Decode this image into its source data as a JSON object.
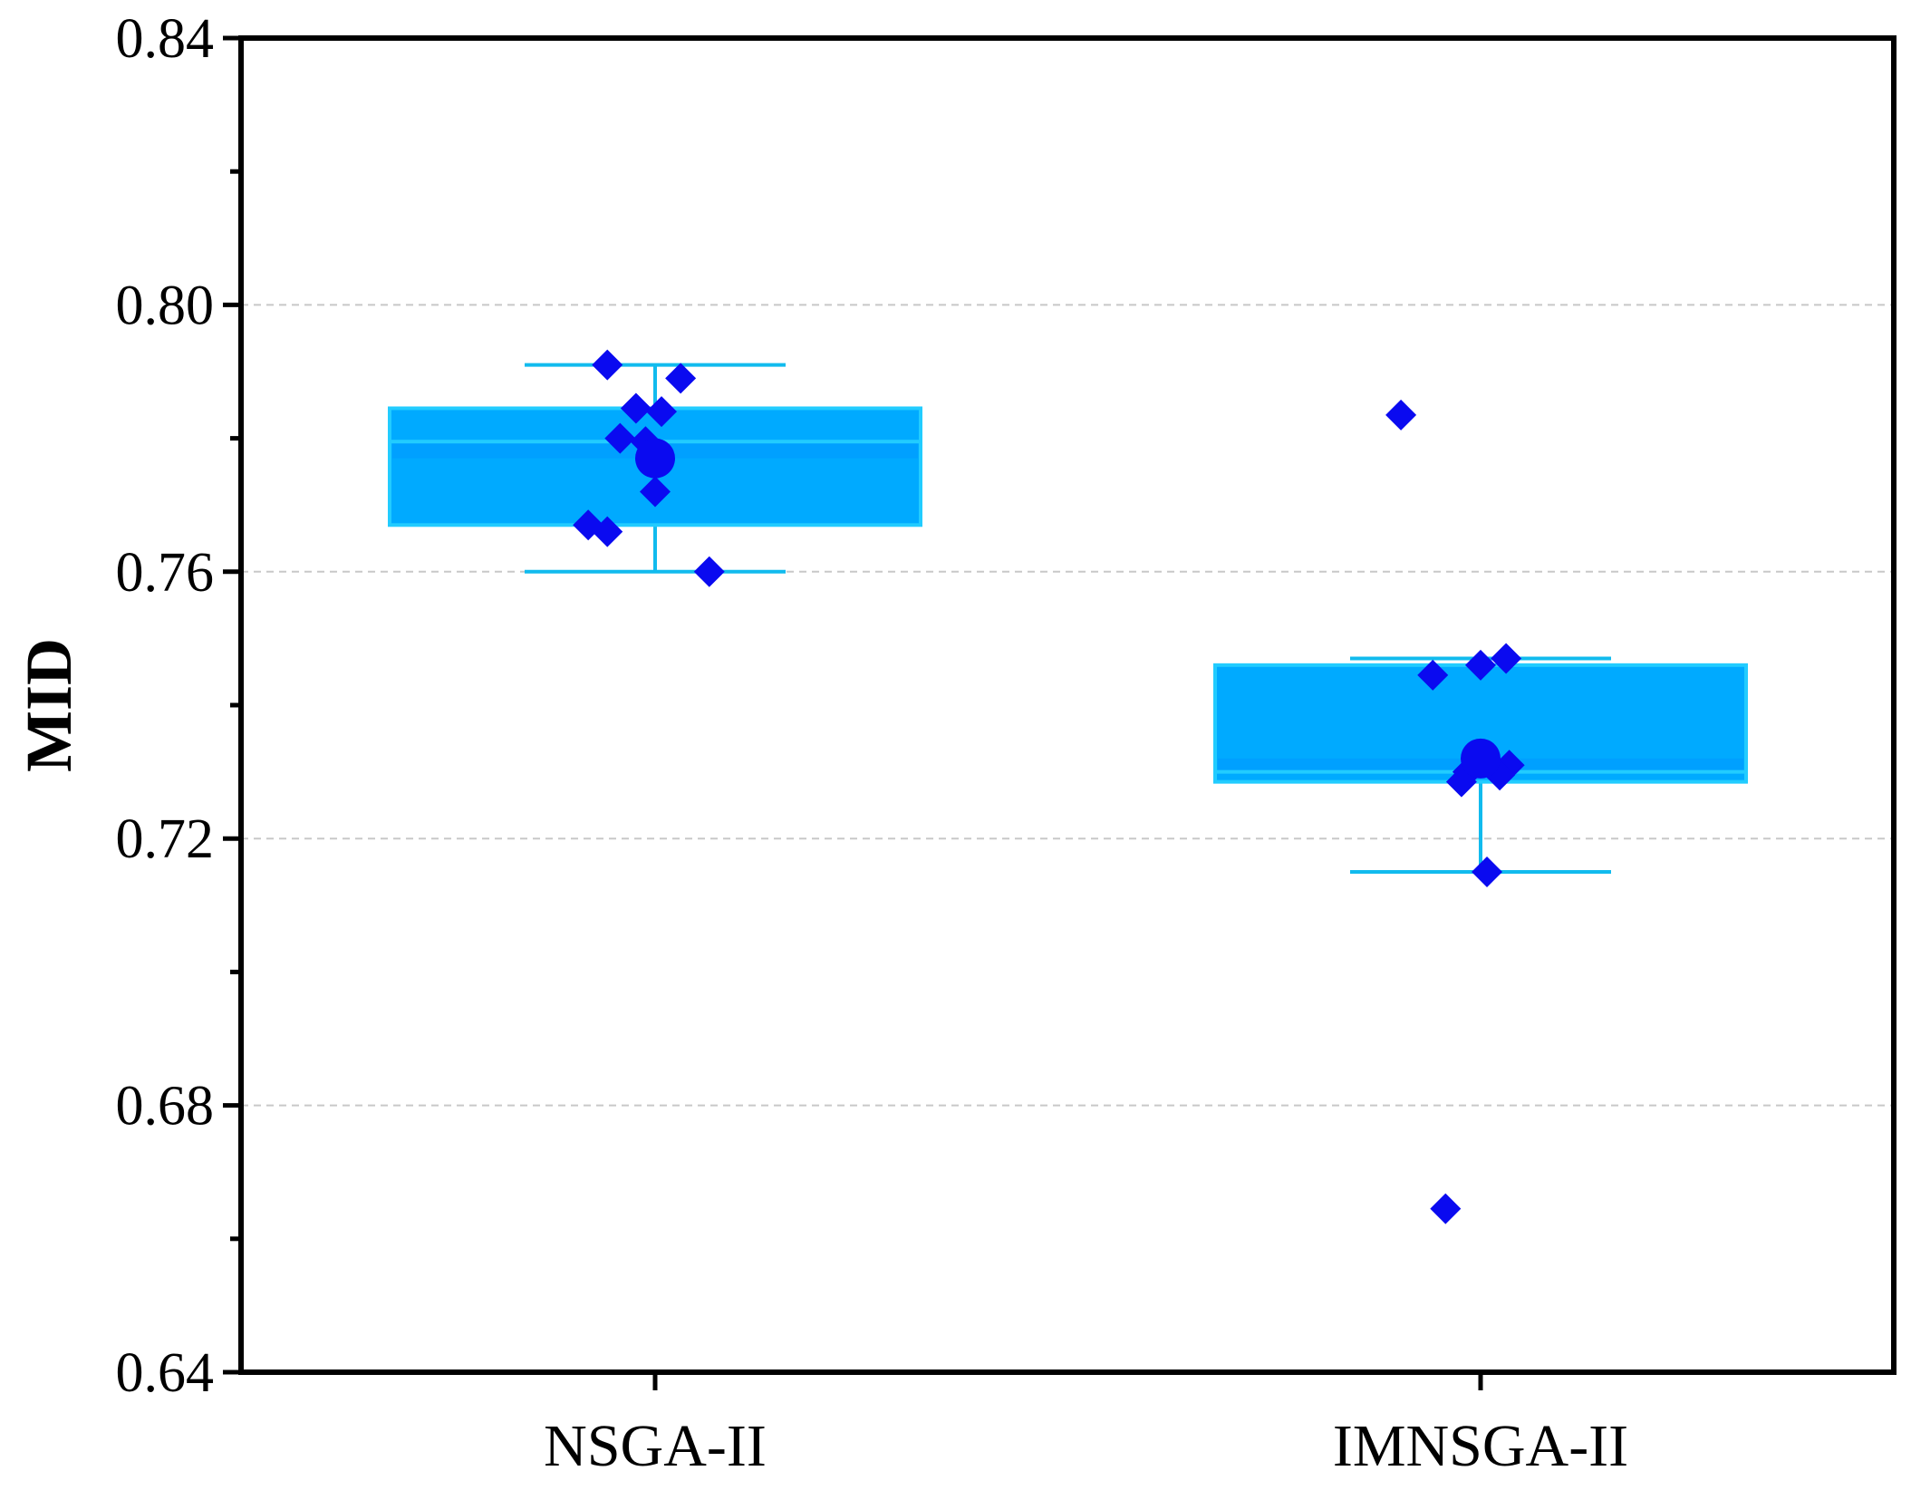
{
  "colors": {
    "box_fill": "#00AAFF",
    "box_inner": "#0099FF",
    "box_stroke": "#22CCFF",
    "whisker": "#11BBEE",
    "point": "#0A0AF0",
    "grid": "#C8C8C8",
    "axis": "#000000"
  },
  "chart_data": {
    "type": "box",
    "title": "",
    "xlabel": "",
    "ylabel": "MID",
    "ylim": [
      0.64,
      0.84
    ],
    "yticks": [
      "0.64",
      "0.68",
      "0.72",
      "0.76",
      "0.80",
      "0.84"
    ],
    "grid_y": [
      0.68,
      0.72,
      0.76,
      0.8
    ],
    "categories": [
      "NSGA-II",
      "IMNSGA-II"
    ],
    "boxes": [
      {
        "name": "NSGA-II",
        "whisker_low": 0.76,
        "q1": 0.767,
        "median": 0.7795,
        "q3": 0.7845,
        "whisker_high": 0.791,
        "mean": 0.777,
        "points": [
          {
            "value": 0.791,
            "jitter": -0.15
          },
          {
            "value": 0.789,
            "jitter": 0.08
          },
          {
            "value": 0.7845,
            "jitter": -0.06
          },
          {
            "value": 0.784,
            "jitter": 0.02
          },
          {
            "value": 0.78,
            "jitter": -0.11
          },
          {
            "value": 0.7795,
            "jitter": -0.03
          },
          {
            "value": 0.772,
            "jitter": 0.0
          },
          {
            "value": 0.767,
            "jitter": -0.21
          },
          {
            "value": 0.766,
            "jitter": -0.15
          },
          {
            "value": 0.76,
            "jitter": 0.17
          }
        ]
      },
      {
        "name": "IMNSGA-II",
        "whisker_low": 0.715,
        "q1": 0.7285,
        "median": 0.73,
        "q3": 0.746,
        "whisker_high": 0.747,
        "mean": 0.732,
        "points": [
          {
            "value": 0.7835,
            "jitter": -0.25
          },
          {
            "value": 0.747,
            "jitter": 0.08
          },
          {
            "value": 0.746,
            "jitter": 0.0
          },
          {
            "value": 0.7445,
            "jitter": -0.15
          },
          {
            "value": 0.731,
            "jitter": 0.09
          },
          {
            "value": 0.73,
            "jitter": -0.04
          },
          {
            "value": 0.7295,
            "jitter": 0.06
          },
          {
            "value": 0.7285,
            "jitter": -0.06
          },
          {
            "value": 0.715,
            "jitter": 0.02
          },
          {
            "value": 0.6645,
            "jitter": -0.11
          }
        ]
      }
    ]
  }
}
